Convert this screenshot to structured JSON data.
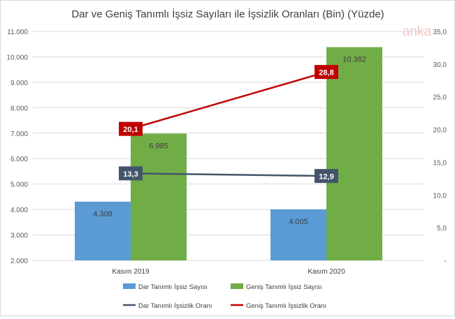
{
  "watermark": "anka",
  "chart_data": {
    "type": "bar",
    "title": "Dar ve Geniş Tanımlı İşsiz Sayıları ile İşsizlik Oranları (Bin) (Yüzde)",
    "categories": [
      "Kasım 2019",
      "Kasım 2020"
    ],
    "series": [
      {
        "name": "Dar Tanımlı İşsiz Sayısı",
        "kind": "bar",
        "axis": "left",
        "color": "#5b9bd5",
        "values": [
          4308,
          4005
        ],
        "labels": [
          "4.308",
          "4.005"
        ]
      },
      {
        "name": "Geniş Tanımlı İşsiz Sayısı",
        "kind": "bar",
        "axis": "left",
        "color": "#70ad47",
        "values": [
          6985,
          10382
        ],
        "labels": [
          "6.985",
          "10.382"
        ]
      },
      {
        "name": "Dar Tanımlı İşsizlik Oranı",
        "kind": "line",
        "axis": "right",
        "color": "#44546a",
        "values": [
          13.3,
          12.9
        ],
        "labels": [
          "13,3",
          "12,9"
        ]
      },
      {
        "name": "Geniş Tanımlı İşsizlik Oranı",
        "kind": "line",
        "axis": "right",
        "color": "#c00000",
        "values": [
          20.1,
          28.8
        ],
        "labels": [
          "20,1",
          "28,8"
        ]
      }
    ],
    "y_left": {
      "range": [
        2000,
        11000
      ],
      "ticks": [
        "2.000",
        "3.000",
        "4.000",
        "5.000",
        "6.000",
        "7.000",
        "8.000",
        "9.000",
        "10.000",
        "11.000"
      ]
    },
    "y_right": {
      "range": [
        0,
        35
      ],
      "ticks": [
        "-",
        "5,0",
        "10,0",
        "15,0",
        "20,0",
        "25,0",
        "30,0",
        "35,0"
      ]
    },
    "grid": true,
    "legend_position": "bottom"
  }
}
